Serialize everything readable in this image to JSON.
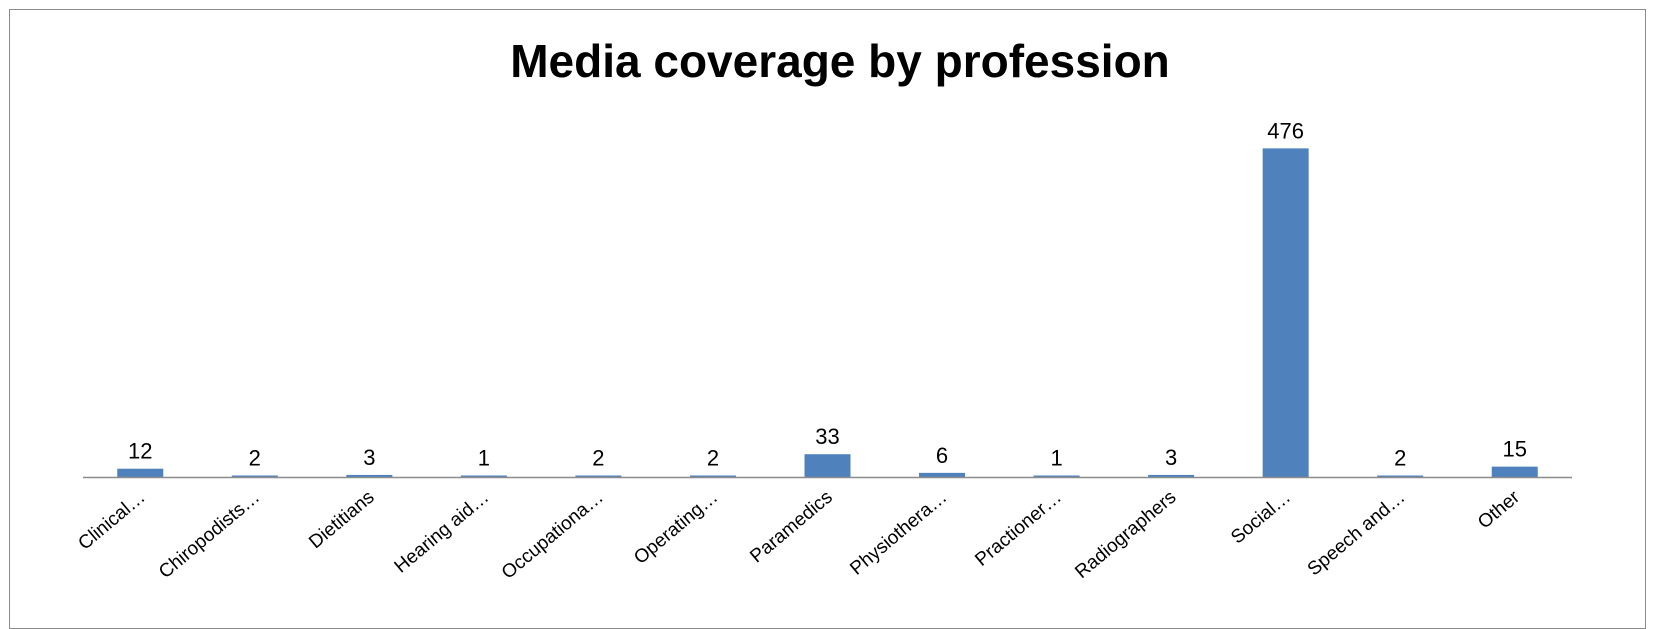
{
  "chart_data": {
    "type": "bar",
    "title": "Media coverage by profession",
    "xlabel": "",
    "ylabel": "",
    "categories": [
      "Clinical…",
      "Chiropodists…",
      "Dietitians",
      "Hearing aid…",
      "Occupationa…",
      "Operating…",
      "Paramedics",
      "Physiothera…",
      "Practioner…",
      "Radiographers",
      "Social…",
      "Speech and…",
      "Other"
    ],
    "values": [
      12,
      2,
      3,
      1,
      2,
      2,
      33,
      6,
      1,
      3,
      476,
      2,
      15
    ],
    "ylim": [
      0,
      520
    ],
    "grid": false,
    "legend": "none",
    "bar_color": "#4f81bd",
    "axis_color": "#8c8c8c"
  }
}
